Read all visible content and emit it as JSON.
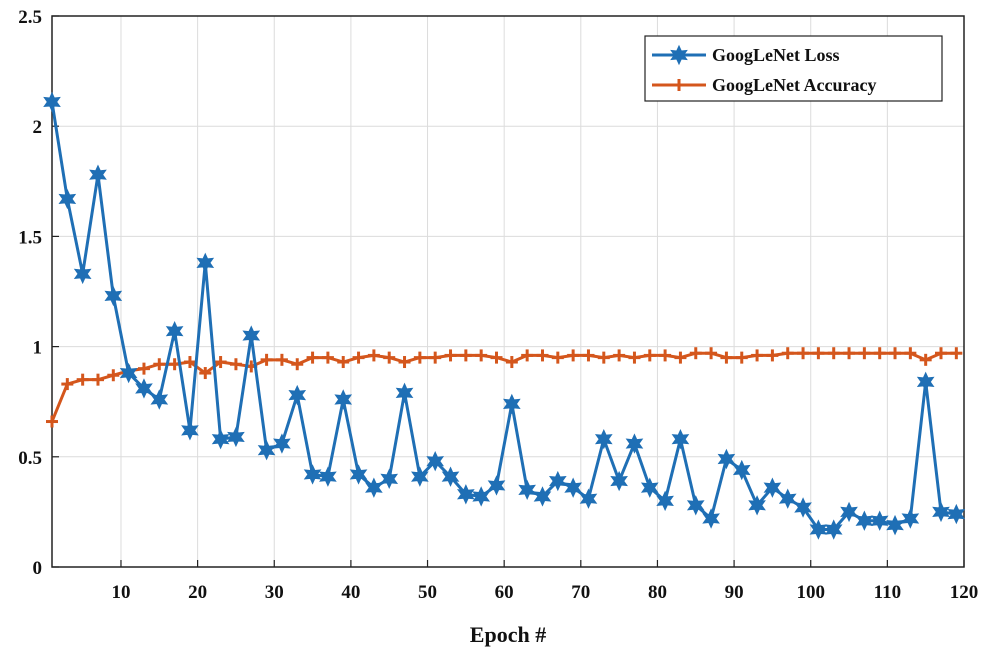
{
  "chart_data": {
    "type": "line",
    "title": "",
    "xlabel": "Epoch #",
    "ylabel": "",
    "xlim": [
      1,
      120
    ],
    "ylim": [
      0,
      2.5
    ],
    "x_ticks": [
      10,
      20,
      30,
      40,
      50,
      60,
      70,
      80,
      90,
      100,
      110,
      120
    ],
    "y_ticks": [
      0,
      0.5,
      1,
      1.5,
      2,
      2.5
    ],
    "y_tick_labels": [
      "0",
      "0.5",
      "1",
      "1.5",
      "2",
      "2.5"
    ],
    "grid": true,
    "legend_position": "top-right",
    "x": [
      1,
      3,
      5,
      7,
      9,
      11,
      13,
      15,
      17,
      19,
      21,
      23,
      25,
      27,
      29,
      31,
      33,
      35,
      37,
      39,
      41,
      43,
      45,
      47,
      49,
      51,
      53,
      55,
      57,
      59,
      61,
      63,
      65,
      67,
      69,
      71,
      73,
      75,
      77,
      79,
      81,
      83,
      85,
      87,
      89,
      91,
      93,
      95,
      97,
      99,
      101,
      103,
      105,
      107,
      109,
      111,
      113,
      115,
      117,
      119
    ],
    "series": [
      {
        "name": "GoogLeNet Loss",
        "color": "#1f6fb5",
        "marker": "hexagram",
        "values": [
          2.11,
          1.67,
          1.33,
          1.78,
          1.23,
          0.88,
          0.81,
          0.76,
          1.07,
          0.62,
          1.38,
          0.58,
          0.59,
          1.05,
          0.53,
          0.56,
          0.78,
          0.42,
          0.41,
          0.76,
          0.42,
          0.36,
          0.4,
          0.79,
          0.41,
          0.48,
          0.41,
          0.33,
          0.32,
          0.37,
          0.74,
          0.35,
          0.32,
          0.39,
          0.36,
          0.31,
          0.58,
          0.39,
          0.56,
          0.36,
          0.3,
          0.58,
          0.28,
          0.22,
          0.49,
          0.44,
          0.28,
          0.36,
          0.31,
          0.27,
          0.17,
          0.17,
          0.25,
          0.21,
          0.21,
          0.19,
          0.22,
          0.84,
          0.25,
          0.24
        ]
      },
      {
        "name": "GoogLeNet Accuracy",
        "color": "#d4561c",
        "marker": "plus",
        "values": [
          0.66,
          0.83,
          0.85,
          0.85,
          0.87,
          0.89,
          0.9,
          0.92,
          0.92,
          0.93,
          0.88,
          0.93,
          0.92,
          0.91,
          0.94,
          0.94,
          0.92,
          0.95,
          0.95,
          0.93,
          0.95,
          0.96,
          0.95,
          0.93,
          0.95,
          0.95,
          0.96,
          0.96,
          0.96,
          0.95,
          0.93,
          0.96,
          0.96,
          0.95,
          0.96,
          0.96,
          0.95,
          0.96,
          0.95,
          0.96,
          0.96,
          0.95,
          0.97,
          0.97,
          0.95,
          0.95,
          0.96,
          0.96,
          0.97,
          0.97,
          0.97,
          0.97,
          0.97,
          0.97,
          0.97,
          0.97,
          0.97,
          0.94,
          0.97,
          0.97
        ]
      }
    ]
  }
}
